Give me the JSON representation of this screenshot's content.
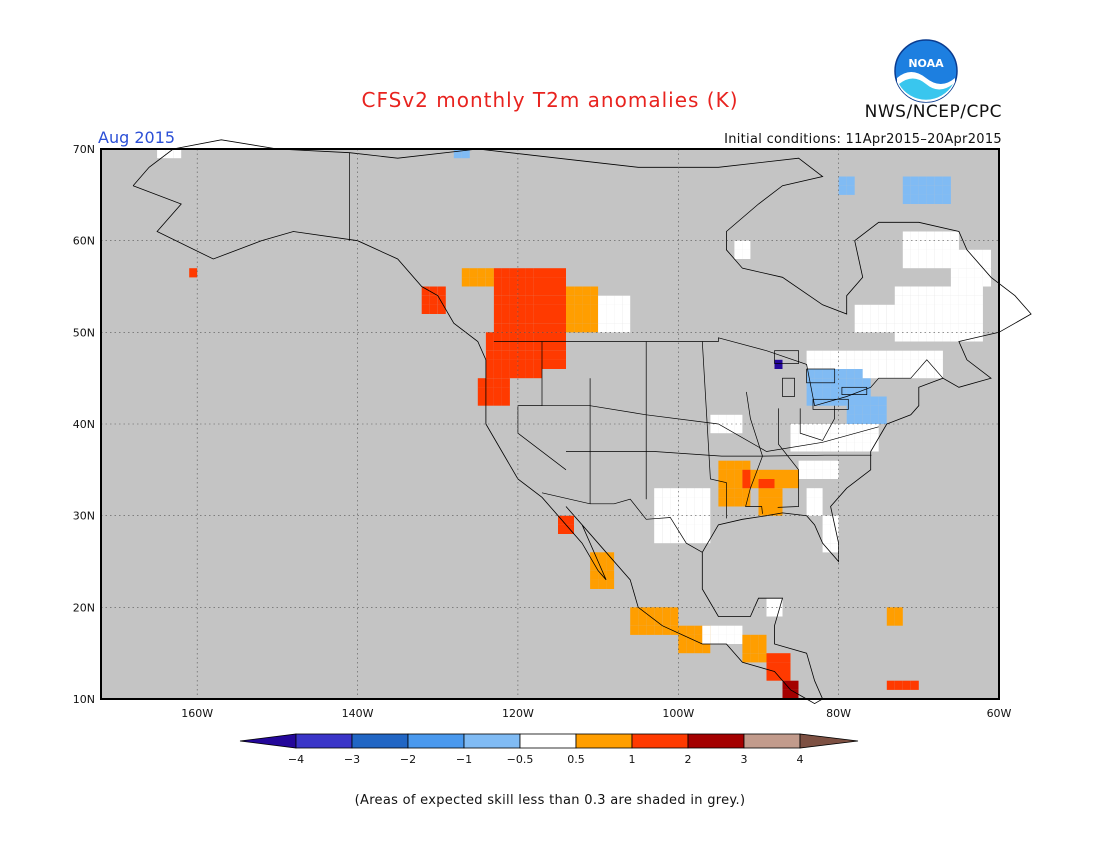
{
  "title": "CFSv2 monthly T2m anomalies (K)",
  "agency": "NWS/NCEP/CPC",
  "period": "Aug 2015",
  "initial_conditions": "Initial conditions: 11Apr2015–20Apr2015",
  "footnote": "(Areas of expected skill less than 0.3 are shaded in grey.)",
  "logo_text": "NOAA",
  "map": {
    "lon_range": [
      -172,
      -60
    ],
    "lat_range": [
      10,
      70
    ],
    "lon_ticks": [
      "160W",
      "140W",
      "120W",
      "100W",
      "80W",
      "60W"
    ],
    "lat_ticks": [
      "70N",
      "60N",
      "50N",
      "40N",
      "30N",
      "20N",
      "10N"
    ]
  },
  "legend": {
    "boundaries": [
      "−4",
      "−3",
      "−2",
      "−1",
      "−0.5",
      "0.5",
      "1",
      "2",
      "3",
      "4"
    ]
  },
  "colors": {
    "grey": "#c4c4c4",
    "lt_blue": "#80bbf4",
    "blue": "#4a99ee",
    "dk_blue": "#2166c4",
    "navy": "#3a35c8",
    "deep": "#24079a",
    "white": "#ffffff",
    "orange": "#ff9e00",
    "red_orange": "#ff3a00",
    "dark_red": "#a40000",
    "tan": "#c29b8c",
    "brown": "#7d5042"
  }
}
